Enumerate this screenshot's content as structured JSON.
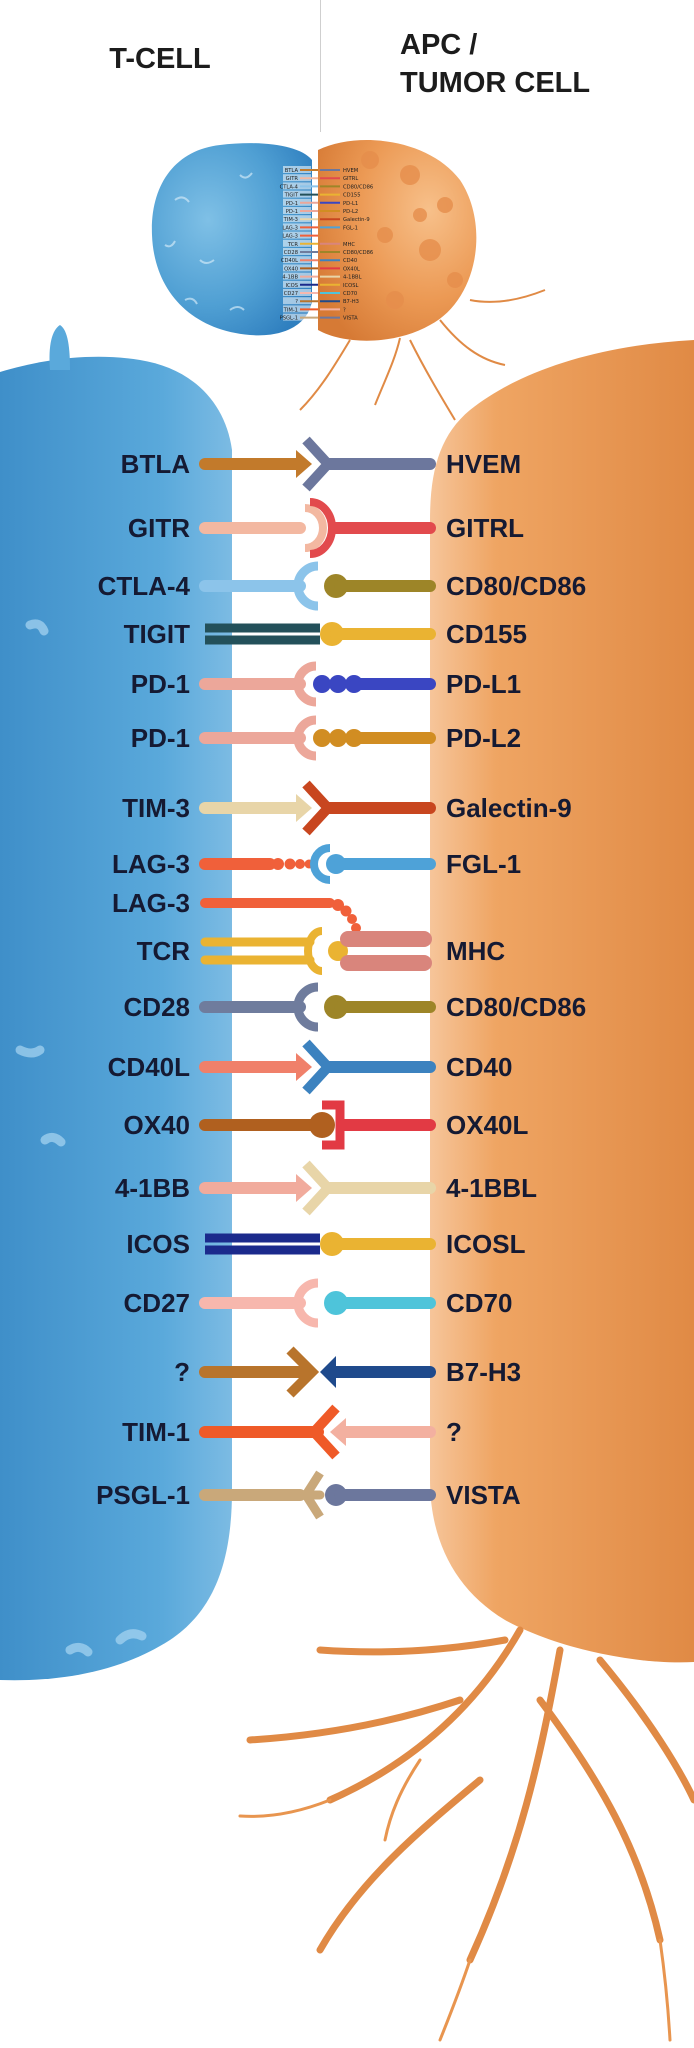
{
  "headers": {
    "left": "T-CELL",
    "right": "APC /",
    "right_line2": "TUMOR CELL"
  },
  "pairs": [
    {
      "left": "BTLA",
      "right": "HVEM",
      "left_color": "#c27a2b",
      "right_color": "#6c779d",
      "motif": "arrow-fork"
    },
    {
      "left": "GITR",
      "right": "GITRL",
      "left_color": "#f3b8a1",
      "right_color": "#e24a4d",
      "motif": "cup-receiver"
    },
    {
      "left": "CTLA-4",
      "right": "CD80/CD86",
      "left_color": "#8cc4ea",
      "right_color": "#9d8528",
      "motif": "cup-ball"
    },
    {
      "left": "TIGIT",
      "right": "CD155",
      "left_color": "#23505a",
      "right_color": "#eab332",
      "motif": "double-ball"
    },
    {
      "left": "PD-1",
      "right": "PD-L1",
      "left_color": "#eca79a",
      "right_color": "#3a46c2",
      "motif": "cup-beads"
    },
    {
      "left": "PD-1",
      "right": "PD-L2",
      "left_color": "#eca79a",
      "right_color": "#d18d22",
      "motif": "cup-beads"
    },
    {
      "left": "TIM-3",
      "right": "Galectin-9",
      "left_color": "#e8d5a8",
      "right_color": "#c8461f",
      "motif": "arrow-fork"
    },
    {
      "left": "LAG-3",
      "right": "FGL-1",
      "left_color": "#f0603a",
      "right_color": "#4ea2d8",
      "motif": "beads-cup"
    },
    {
      "left": "LAG-3",
      "right": "",
      "left_color": "#f0603a",
      "right_color": "",
      "motif": "curl"
    },
    {
      "left": "TCR",
      "right": "MHC",
      "left_color": "#eab332",
      "right_color": "#d9857c",
      "motif": "tcr-mhc"
    },
    {
      "left": "CD28",
      "right": "CD80/CD86",
      "left_color": "#6f7c9d",
      "right_color": "#9d8528",
      "motif": "cup-ball"
    },
    {
      "left": "CD40L",
      "right": "CD40",
      "left_color": "#f0806a",
      "right_color": "#3c82bf",
      "motif": "arrow-fork"
    },
    {
      "left": "OX40",
      "right": "OX40L",
      "left_color": "#b0601f",
      "right_color": "#e23a44",
      "motif": "ball-bracket"
    },
    {
      "left": "4-1BB",
      "right": "4-1BBL",
      "left_color": "#f1ab9c",
      "right_color": "#e8d5a8",
      "motif": "arrow-fork"
    },
    {
      "left": "ICOS",
      "right": "ICOSL",
      "left_color": "#1b2a8c",
      "right_color": "#eab332",
      "motif": "double-ball"
    },
    {
      "left": "CD27",
      "right": "CD70",
      "left_color": "#f7b7ad",
      "right_color": "#4ec4da",
      "motif": "cup-ball"
    },
    {
      "left": "?",
      "right": "B7-H3",
      "left_color": "#b8742c",
      "right_color": "#1f4a8c",
      "motif": "fork-arrow"
    },
    {
      "left": "TIM-1",
      "right": "?",
      "left_color": "#ef5a28",
      "right_color": "#f3b0a0",
      "motif": "arrow-fork-reverse"
    },
    {
      "left": "PSGL-1",
      "right": "VISTA",
      "left_color": "#c9a87a",
      "right_color": "#6c779d",
      "motif": "fork-ball"
    }
  ],
  "colors": {
    "tcell": "#4f9fd3",
    "tcell_dark": "#2f7fbf",
    "apc": "#ec9a55",
    "apc_dark": "#d67a35",
    "label": "#151a33"
  }
}
